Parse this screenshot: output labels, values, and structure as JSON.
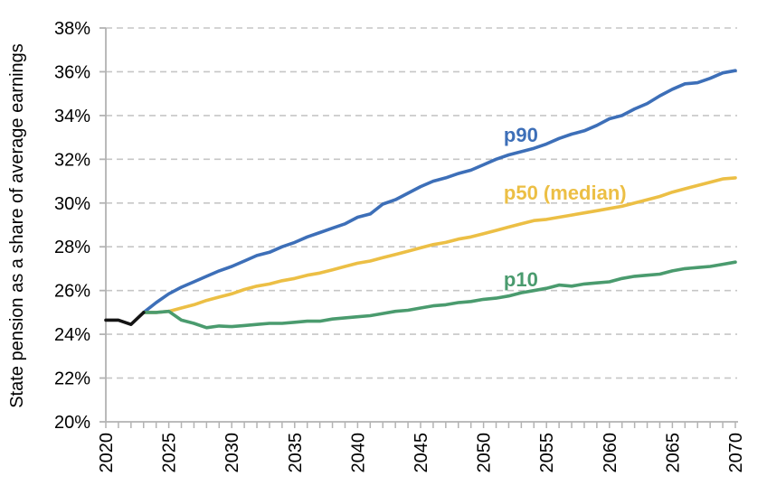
{
  "chart_data": {
    "type": "line",
    "title": "",
    "xlabel": "",
    "ylabel": "State pension as a share of average earnings",
    "xlim": [
      2020,
      2070
    ],
    "ylim": [
      20,
      38
    ],
    "y_ticks": [
      20,
      22,
      24,
      26,
      28,
      30,
      32,
      34,
      36,
      38
    ],
    "y_tick_suffix": "%",
    "x_major_ticks": [
      2020,
      2025,
      2030,
      2035,
      2040,
      2045,
      2050,
      2055,
      2060,
      2065,
      2070
    ],
    "x_minor_tick_step": 1,
    "grid": {
      "horizontal": true,
      "style": "dashed"
    },
    "legend_position": "inline-annotations",
    "colors": {
      "grid": "#c6c6c6",
      "axis": "#b3b3b3",
      "text": "#000000",
      "p90": "#3D6FB8",
      "p50": "#ECBF45",
      "p10": "#4A9B6E",
      "history": "#141414"
    },
    "series": [
      {
        "name": "p90",
        "label": "p90",
        "color": "#3D6FB8",
        "x_start": 2023,
        "values": [
          25.0,
          25.45,
          25.85,
          26.15,
          26.4,
          26.65,
          26.9,
          27.1,
          27.35,
          27.6,
          27.75,
          28.0,
          28.2,
          28.45,
          28.65,
          28.85,
          29.05,
          29.35,
          29.5,
          29.95,
          30.15,
          30.45,
          30.75,
          31.0,
          31.15,
          31.35,
          31.5,
          31.75,
          32.0,
          32.2,
          32.35,
          32.5,
          32.7,
          32.95,
          33.15,
          33.3,
          33.55,
          33.85,
          34.0,
          34.3,
          34.55,
          34.9,
          35.2,
          35.45,
          35.5,
          35.7,
          35.95,
          36.05
        ]
      },
      {
        "name": "p50",
        "label": "p50 (median)",
        "color": "#ECBF45",
        "x_start": 2023,
        "values": [
          25.0,
          25.0,
          25.05,
          25.2,
          25.35,
          25.55,
          25.7,
          25.85,
          26.05,
          26.2,
          26.3,
          26.45,
          26.55,
          26.7,
          26.8,
          26.95,
          27.1,
          27.25,
          27.35,
          27.5,
          27.65,
          27.8,
          27.95,
          28.1,
          28.2,
          28.35,
          28.45,
          28.6,
          28.75,
          28.9,
          29.05,
          29.2,
          29.25,
          29.35,
          29.45,
          29.55,
          29.65,
          29.75,
          29.85,
          30.0,
          30.15,
          30.3,
          30.5,
          30.65,
          30.8,
          30.95,
          31.1,
          31.15
        ]
      },
      {
        "name": "p10",
        "label": "p10",
        "color": "#4A9B6E",
        "x_start": 2023,
        "values": [
          25.0,
          25.0,
          25.05,
          24.65,
          24.5,
          24.3,
          24.38,
          24.35,
          24.4,
          24.45,
          24.5,
          24.5,
          24.55,
          24.6,
          24.6,
          24.7,
          24.75,
          24.8,
          24.85,
          24.95,
          25.05,
          25.1,
          25.2,
          25.3,
          25.35,
          25.45,
          25.5,
          25.6,
          25.65,
          25.75,
          25.9,
          26.0,
          26.1,
          26.25,
          26.2,
          26.3,
          26.35,
          26.4,
          26.55,
          26.65,
          26.7,
          26.75,
          26.9,
          27.0,
          27.05,
          27.1,
          27.2,
          27.3
        ]
      },
      {
        "name": "history",
        "label": "",
        "color": "#141414",
        "x_start": 2020,
        "values": [
          24.65,
          24.65,
          24.45,
          25.0
        ]
      }
    ],
    "annotations": [
      {
        "text": "p90",
        "series": "p90",
        "color": "#3D6FB8",
        "year": 2051.6,
        "value": 32.8
      },
      {
        "text": "p50 (median)",
        "series": "p50",
        "color": "#ECBF45",
        "year": 2051.6,
        "value": 30.15
      },
      {
        "text": "p10",
        "series": "p10",
        "color": "#4A9B6E",
        "year": 2051.6,
        "value": 26.2
      }
    ]
  }
}
